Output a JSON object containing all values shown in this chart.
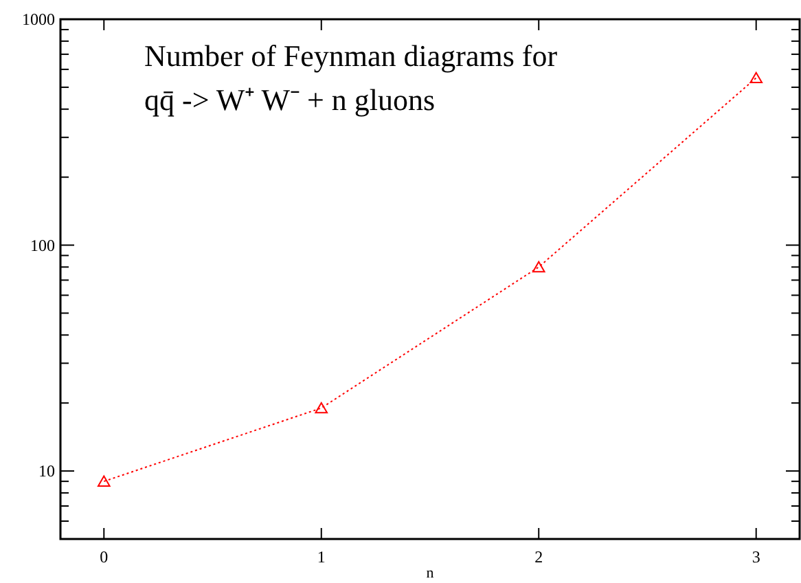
{
  "chart_data": {
    "type": "line",
    "title": "Number of Feynman diagrams for",
    "subtitle": "qq̄ -> W⁺ W⁻ + n gluons",
    "xlabel": "n",
    "x": [
      0,
      1,
      2,
      3
    ],
    "series": [
      {
        "color": "#ff0000",
        "values": [
          9,
          19,
          80,
          550
        ]
      }
    ],
    "xlim": [
      -0.2,
      3.2
    ],
    "xticks": [
      0,
      1,
      2,
      3
    ],
    "ylim": [
      5,
      1000
    ],
    "yticks": [
      10,
      100,
      1000
    ],
    "log": "y",
    "marker": "triangle",
    "line_style": "dotted"
  }
}
